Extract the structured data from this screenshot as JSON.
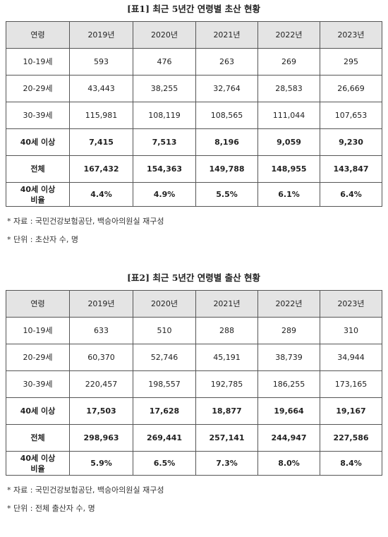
{
  "tables": [
    {
      "title": "[표1] 최근 5년간 연령별 초산 현황",
      "header": [
        "연령",
        "2019년",
        "2020년",
        "2021년",
        "2022년",
        "2023년"
      ],
      "rows": [
        [
          "10-19세",
          "593",
          "476",
          "263",
          "269",
          "295"
        ],
        [
          "20-29세",
          "43,443",
          "38,255",
          "32,764",
          "28,583",
          "26,669"
        ],
        [
          "30-39세",
          "115,981",
          "108,119",
          "108,565",
          "111,044",
          "107,653"
        ],
        [
          "40세 이상",
          "7,415",
          "7,513",
          "8,196",
          "9,059",
          "9,230"
        ],
        [
          "전체",
          "167,432",
          "154,363",
          "149,788",
          "148,955",
          "143,847"
        ],
        [
          "40세 이상\n비율",
          "4.4%",
          "4.9%",
          "5.5%",
          "6.1%",
          "6.4%"
        ]
      ],
      "notes": [
        "* 자료 : 국민건강보험공단, 백승아의원실 재구성",
        "* 단위 : 초산자 수, 명"
      ]
    },
    {
      "title": "[표2] 최근 5년간 연령별 출산 현황",
      "header": [
        "연령",
        "2019년",
        "2020년",
        "2021년",
        "2022년",
        "2023년"
      ],
      "rows": [
        [
          "10-19세",
          "633",
          "510",
          "288",
          "289",
          "310"
        ],
        [
          "20-29세",
          "60,370",
          "52,746",
          "45,191",
          "38,739",
          "34,944"
        ],
        [
          "30-39세",
          "220,457",
          "198,557",
          "192,785",
          "186,255",
          "173,165"
        ],
        [
          "40세 이상",
          "17,503",
          "17,628",
          "18,877",
          "19,664",
          "19,167"
        ],
        [
          "전체",
          "298,963",
          "269,441",
          "257,141",
          "244,947",
          "227,586"
        ],
        [
          "40세 이상\n비율",
          "5.9%",
          "6.5%",
          "7.3%",
          "8.0%",
          "8.4%"
        ]
      ],
      "notes": [
        "* 자료 : 국민건강보험공단, 백승아의원실 재구성",
        "* 단위 : 전체 출산자 수, 명"
      ]
    }
  ]
}
